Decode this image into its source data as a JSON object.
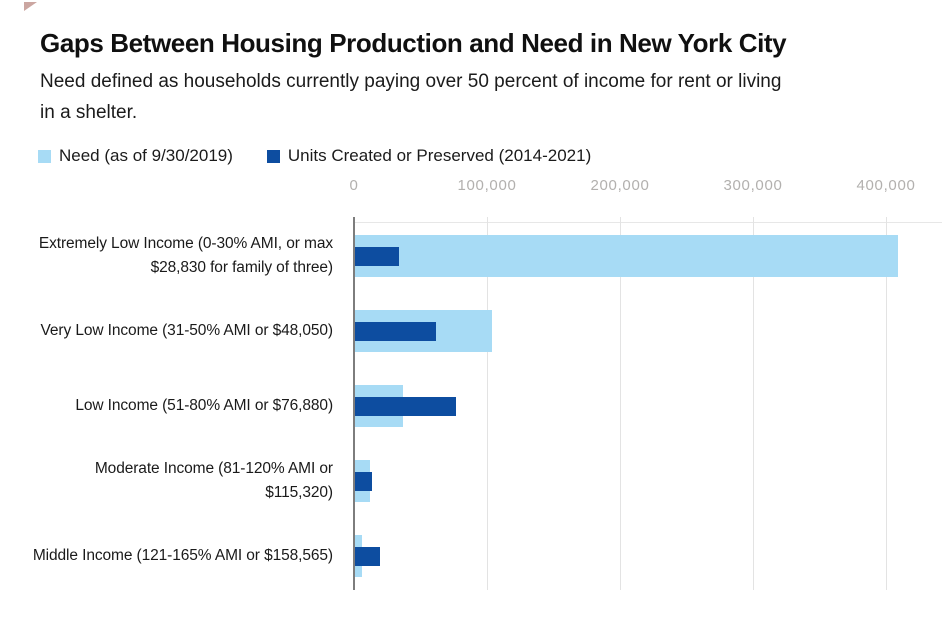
{
  "chart_data": {
    "type": "bar",
    "orientation": "horizontal",
    "title": "Gaps Between Housing Production and Need in New York City",
    "subtitle_lines": [
      "Need defined as households currently paying over 50 percent of income for rent or living",
      "in a shelter."
    ],
    "categories": [
      [
        "Extremely Low Income (0-30% AMI, or max",
        "$28,830 for family of three)"
      ],
      [
        "Very Low Income (31-50% AMI or $48,050)"
      ],
      [
        "Low Income (51-80% AMI or $76,880)"
      ],
      [
        "Moderate Income (81-120% AMI or",
        "$115,320)"
      ],
      [
        "Middle Income (121-165% AMI or $158,565)"
      ]
    ],
    "series": [
      {
        "name": "Need (as of 9/30/2019)",
        "color": "#a7dbf5",
        "values": [
          408000,
          103000,
          36000,
          11000,
          5000
        ]
      },
      {
        "name": "Units Created or Preserved (2014-2021)",
        "color": "#0d4da0",
        "values": [
          33000,
          61000,
          76000,
          13000,
          19000
        ]
      }
    ],
    "x_axis": {
      "min": 0,
      "max": 420000,
      "ticks": [
        0,
        100000,
        200000,
        300000,
        400000
      ],
      "tick_labels": [
        "0",
        "100,000",
        "200,000",
        "300,000",
        "400,000"
      ],
      "gridlines": true
    },
    "legend_position": "top-left",
    "colors": {
      "axis_line": "#7d7d7d",
      "gridline": "#e3e3e3",
      "tick_label": "#b2b0ae",
      "text": "#1a1a1a"
    }
  }
}
